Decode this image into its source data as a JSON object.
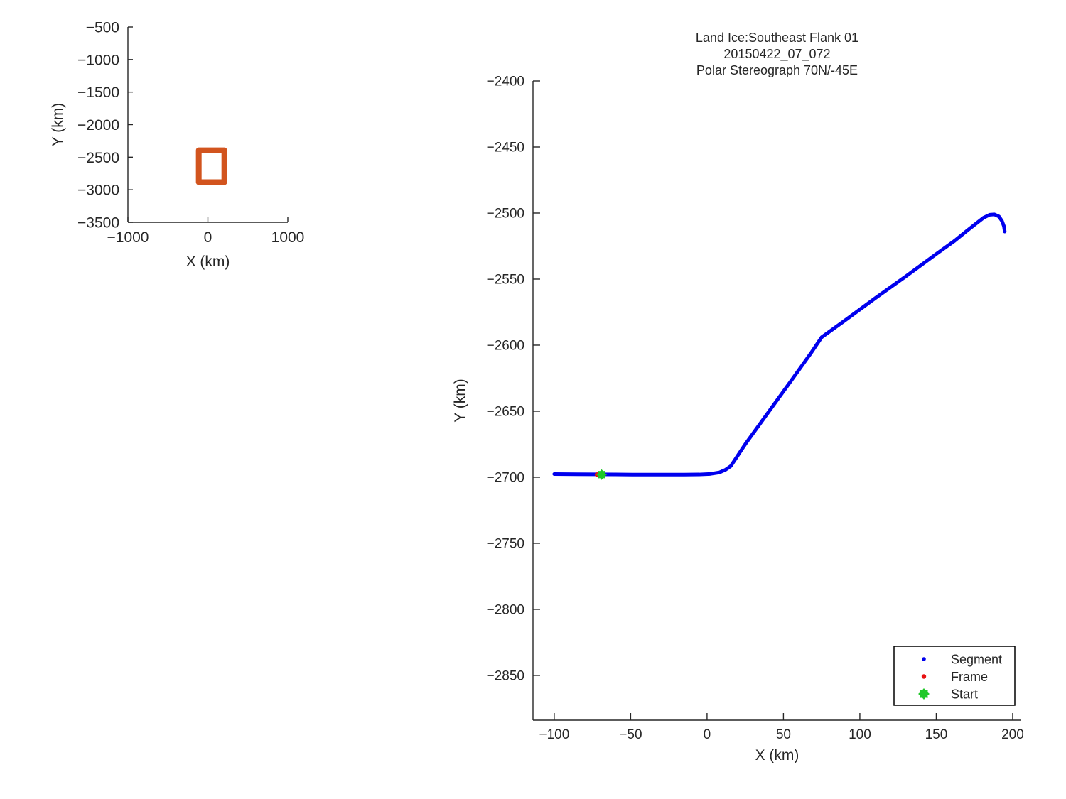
{
  "figure": {
    "background": "#ffffff",
    "text_color": "#262626",
    "axis_color": "#262626"
  },
  "chart_data": [
    {
      "id": "overview",
      "type": "line",
      "title_lines": [],
      "xlabel": "X (km)",
      "ylabel": "Y (km)",
      "xlim": [
        -1000,
        1000
      ],
      "ylim": [
        -3500,
        -500
      ],
      "x_ticks": [
        -1000,
        0,
        1000
      ],
      "x_tick_labels": [
        "−1000",
        "0",
        "1000"
      ],
      "y_ticks": [
        -500,
        -1000,
        -1500,
        -2000,
        -2500,
        -3000,
        -3500
      ],
      "y_tick_labels": [
        "−500",
        "−1000",
        "−1500",
        "−2000",
        "−2500",
        "−3000",
        "−3500"
      ],
      "grid": false,
      "series": [
        {
          "name": "coverage-outline",
          "type": "line",
          "color": "#d2541e",
          "line_width": 8,
          "points": [
            [
              -114,
              -2394
            ],
            [
              206,
              -2394
            ],
            [
              206,
              -2884
            ],
            [
              -114,
              -2884
            ],
            [
              -114,
              -2394
            ]
          ]
        }
      ],
      "legend": null
    },
    {
      "id": "main",
      "type": "line",
      "title_lines": [
        "Land Ice:Southeast Flank 01",
        "20150422_07_072",
        "Polar Stereograph 70N/-45E"
      ],
      "xlabel": "X (km)",
      "ylabel": "Y (km)",
      "xlim": [
        -113.9,
        205.6
      ],
      "ylim": [
        -2883.9,
        -2400
      ],
      "x_ticks": [
        -100,
        -50,
        0,
        50,
        100,
        150,
        200
      ],
      "x_tick_labels": [
        "−100",
        "−50",
        "0",
        "50",
        "100",
        "150",
        "200"
      ],
      "y_ticks": [
        -2400,
        -2450,
        -2500,
        -2550,
        -2600,
        -2650,
        -2700,
        -2750,
        -2800,
        -2850
      ],
      "y_tick_labels": [
        "−2400",
        "−2450",
        "−2500",
        "−2550",
        "−2600",
        "−2650",
        "−2700",
        "−2750",
        "−2800",
        "−2850"
      ],
      "grid": false,
      "series": [
        {
          "name": "Segment",
          "type": "line",
          "color": "#0000ee",
          "line_width": 5,
          "points": [
            [
              -100,
              -2697.6
            ],
            [
              -85,
              -2697.7
            ],
            [
              -73,
              -2697.8
            ],
            [
              -60,
              -2697.9
            ],
            [
              -45,
              -2698
            ],
            [
              -30,
              -2698
            ],
            [
              -15,
              -2698
            ],
            [
              -5,
              -2697.9
            ],
            [
              2,
              -2697.5
            ],
            [
              8,
              -2696.4
            ],
            [
              12,
              -2694.4
            ],
            [
              15.5,
              -2691.6
            ],
            [
              25,
              -2675
            ],
            [
              40,
              -2651
            ],
            [
              55,
              -2627
            ],
            [
              68,
              -2606
            ],
            [
              75,
              -2594
            ],
            [
              90,
              -2581.5
            ],
            [
              110,
              -2564.5
            ],
            [
              130,
              -2548
            ],
            [
              150,
              -2531
            ],
            [
              162,
              -2521
            ],
            [
              170,
              -2513.5
            ],
            [
              176,
              -2508
            ],
            [
              181,
              -2503.5
            ],
            [
              185,
              -2501.3
            ],
            [
              188,
              -2501
            ],
            [
              191,
              -2502.6
            ],
            [
              193,
              -2506
            ],
            [
              194.3,
              -2510
            ],
            [
              194.8,
              -2514
            ]
          ]
        },
        {
          "name": "Frame",
          "type": "markers",
          "marker": "dot",
          "color": "#e81111",
          "size": 3.2,
          "points": [
            [
              -72,
              -2698
            ]
          ]
        },
        {
          "name": "Start",
          "type": "markers",
          "marker": "star",
          "color": "#1ec828",
          "size": 7.5,
          "points": [
            [
              -69,
              -2698
            ]
          ]
        }
      ],
      "legend": {
        "items": [
          {
            "label": "Segment",
            "color": "#0000ee",
            "marker": "dot",
            "size": 2.8
          },
          {
            "label": "Frame",
            "color": "#e81111",
            "marker": "dot",
            "size": 3.2
          },
          {
            "label": "Start",
            "color": "#1ec828",
            "marker": "star",
            "size": 8
          }
        ]
      }
    }
  ]
}
